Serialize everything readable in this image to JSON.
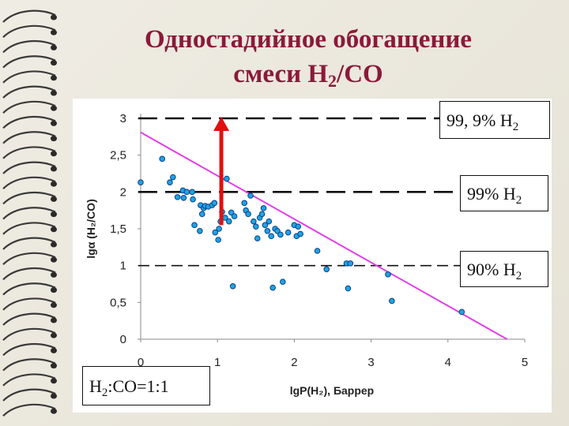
{
  "title": {
    "line1": "Одностадийное обогащение",
    "line2_prefix": "смеси H",
    "line2_sub": "2",
    "line2_suffix": "/CO"
  },
  "labels": {
    "purity_999": {
      "text": "99, 9% H",
      "sub": "2"
    },
    "purity_99": {
      "text": "99% H",
      "sub": "2"
    },
    "purity_90": {
      "text": "90% H",
      "sub": "2"
    },
    "feed_ratio": {
      "prefix": "H",
      "sub": "2",
      "suffix": ":CO=1:1"
    }
  },
  "chart_data": {
    "type": "scatter",
    "xlabel": "lgP(H₂), Баррер",
    "ylabel": "lgα (H₂/CO)",
    "xlim": [
      0,
      5
    ],
    "ylim": [
      0,
      3
    ],
    "xticks": [
      "0",
      "1",
      "2",
      "3",
      "4",
      "5"
    ],
    "yticks": [
      "0",
      "0,5",
      "1",
      "1,5",
      "2",
      "2,5",
      "3"
    ],
    "points": [
      {
        "x": 0.0,
        "y": 2.13
      },
      {
        "x": 0.28,
        "y": 2.45
      },
      {
        "x": 0.38,
        "y": 2.13
      },
      {
        "x": 0.42,
        "y": 2.2
      },
      {
        "x": 0.48,
        "y": 1.93
      },
      {
        "x": 0.55,
        "y": 2.02
      },
      {
        "x": 0.56,
        "y": 1.92
      },
      {
        "x": 0.6,
        "y": 2.0
      },
      {
        "x": 0.68,
        "y": 1.9
      },
      {
        "x": 0.67,
        "y": 2.0
      },
      {
        "x": 0.7,
        "y": 1.55
      },
      {
        "x": 0.77,
        "y": 1.47
      },
      {
        "x": 0.78,
        "y": 1.82
      },
      {
        "x": 0.8,
        "y": 1.7
      },
      {
        "x": 0.82,
        "y": 1.78
      },
      {
        "x": 0.84,
        "y": 1.81
      },
      {
        "x": 0.88,
        "y": 1.8
      },
      {
        "x": 0.93,
        "y": 1.82
      },
      {
        "x": 0.96,
        "y": 1.85
      },
      {
        "x": 0.97,
        "y": 1.45
      },
      {
        "x": 1.01,
        "y": 1.35
      },
      {
        "x": 1.02,
        "y": 1.5
      },
      {
        "x": 1.04,
        "y": 1.6
      },
      {
        "x": 1.06,
        "y": 1.73
      },
      {
        "x": 1.1,
        "y": 1.65
      },
      {
        "x": 1.12,
        "y": 2.18
      },
      {
        "x": 1.15,
        "y": 1.6
      },
      {
        "x": 1.18,
        "y": 1.72
      },
      {
        "x": 1.2,
        "y": 0.72
      },
      {
        "x": 1.22,
        "y": 1.67
      },
      {
        "x": 1.35,
        "y": 1.85
      },
      {
        "x": 1.37,
        "y": 1.75
      },
      {
        "x": 1.4,
        "y": 1.7
      },
      {
        "x": 1.43,
        "y": 1.95
      },
      {
        "x": 1.47,
        "y": 1.6
      },
      {
        "x": 1.5,
        "y": 1.53
      },
      {
        "x": 1.52,
        "y": 1.37
      },
      {
        "x": 1.55,
        "y": 1.65
      },
      {
        "x": 1.58,
        "y": 1.7
      },
      {
        "x": 1.6,
        "y": 1.78
      },
      {
        "x": 1.62,
        "y": 1.55
      },
      {
        "x": 1.65,
        "y": 1.47
      },
      {
        "x": 1.67,
        "y": 1.6
      },
      {
        "x": 1.7,
        "y": 1.4
      },
      {
        "x": 1.72,
        "y": 0.7
      },
      {
        "x": 1.75,
        "y": 1.5
      },
      {
        "x": 1.78,
        "y": 1.47
      },
      {
        "x": 1.82,
        "y": 1.42
      },
      {
        "x": 1.85,
        "y": 0.78
      },
      {
        "x": 1.92,
        "y": 1.45
      },
      {
        "x": 2.0,
        "y": 1.55
      },
      {
        "x": 2.03,
        "y": 1.4
      },
      {
        "x": 2.05,
        "y": 1.53
      },
      {
        "x": 2.08,
        "y": 1.43
      },
      {
        "x": 2.3,
        "y": 1.2
      },
      {
        "x": 2.42,
        "y": 0.95
      },
      {
        "x": 2.68,
        "y": 1.03
      },
      {
        "x": 2.7,
        "y": 0.69
      },
      {
        "x": 2.73,
        "y": 1.03
      },
      {
        "x": 3.22,
        "y": 0.88
      },
      {
        "x": 3.27,
        "y": 0.52
      },
      {
        "x": 4.18,
        "y": 0.37
      }
    ],
    "boundary_line": {
      "x1": 0.0,
      "y1": 2.81,
      "x2": 4.77,
      "y2": 0.0,
      "color": "#e040e8"
    },
    "reference_lines": [
      {
        "y": 3.0,
        "label": "99, 9% H₂"
      },
      {
        "y": 2.0,
        "label": "99% H₂"
      },
      {
        "y": 1.0,
        "label": "90% H₂"
      }
    ],
    "arrow": {
      "x": 1.05,
      "y_from": 1.55,
      "y_to": 3.0,
      "color": "#e01010"
    },
    "grid": false,
    "point_color": "#1fa3e0",
    "point_edge_color": "#0b3f8c"
  }
}
